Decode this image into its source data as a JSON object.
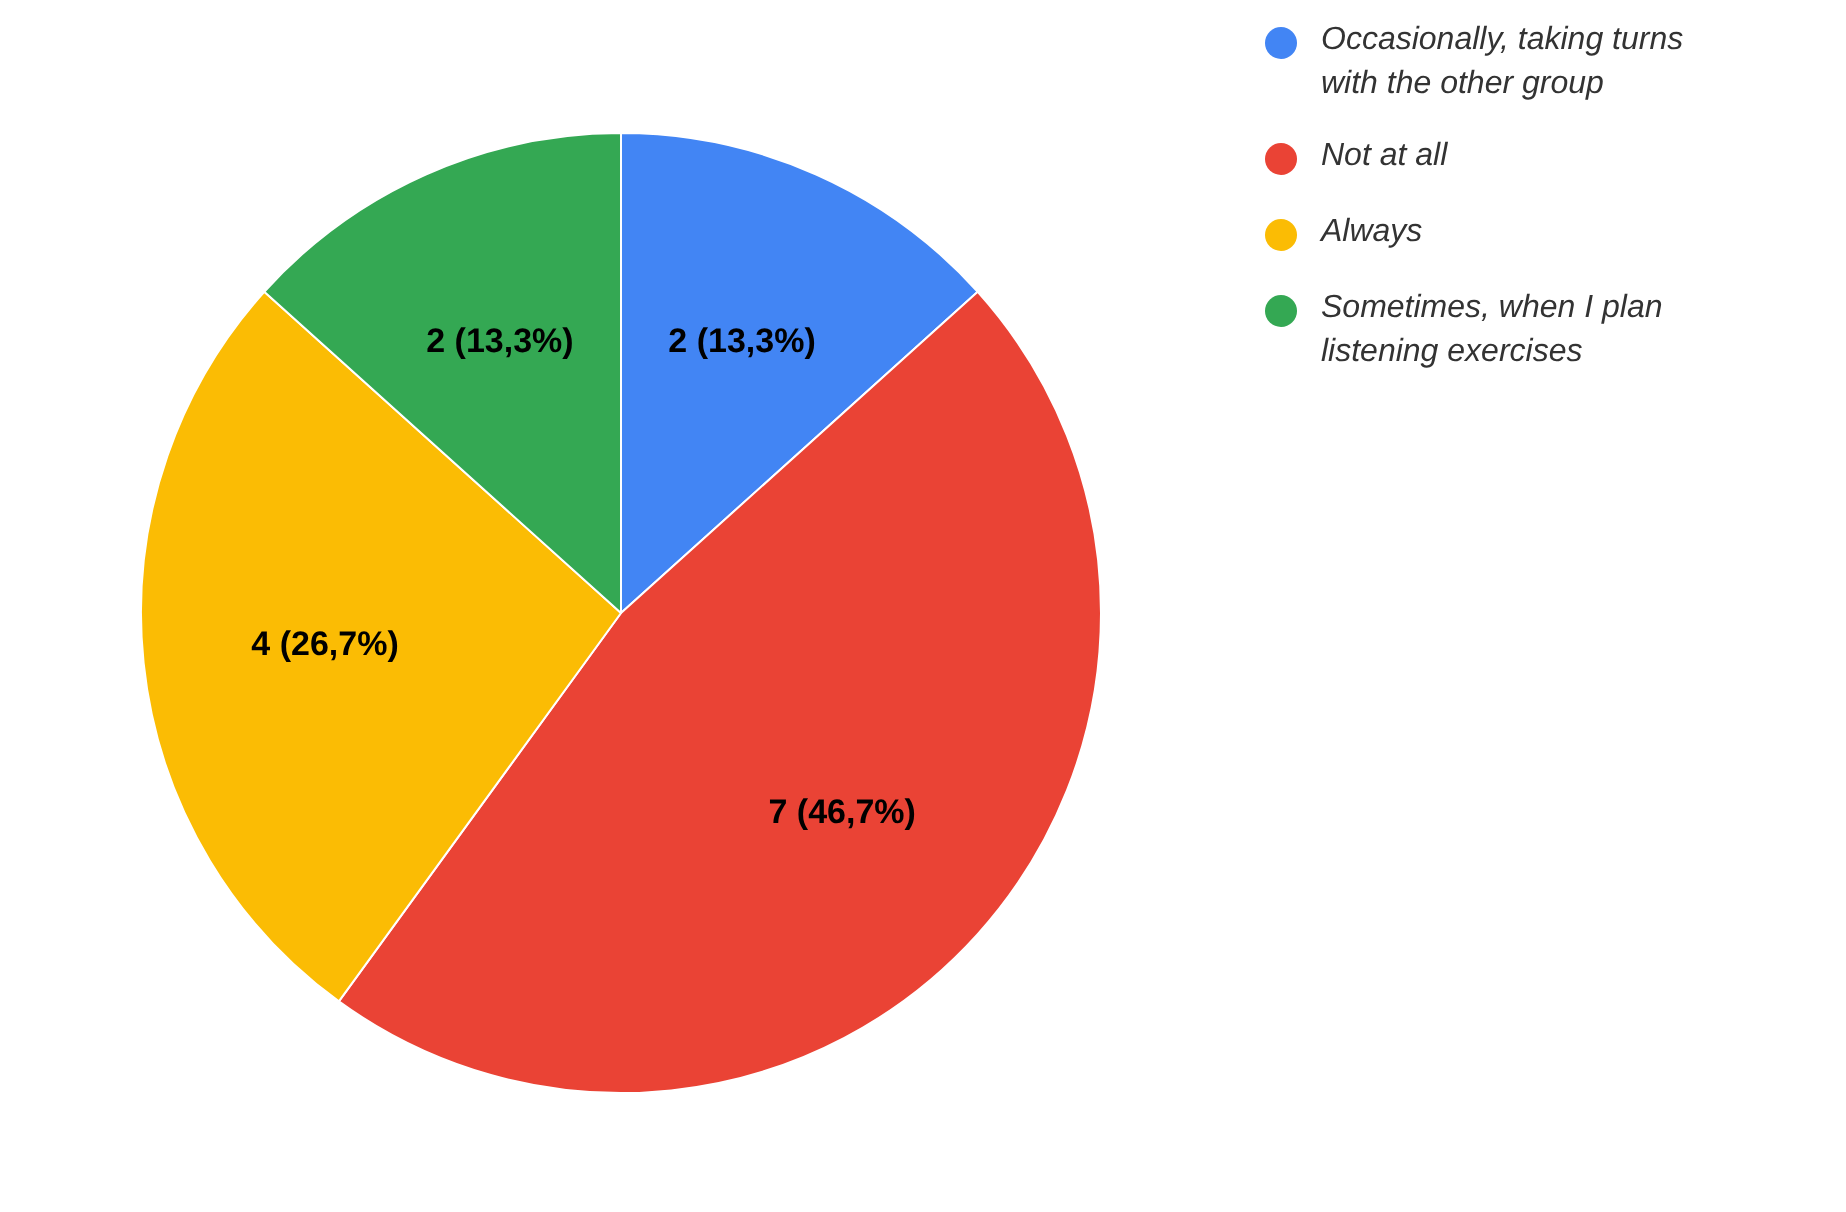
{
  "chart_data": {
    "type": "pie",
    "categories": [
      "Occasionally, taking turns with the other group",
      "Not at all",
      "Always",
      "Sometimes, when I plan listening exercises"
    ],
    "values": [
      2,
      7,
      4,
      2
    ],
    "colors": [
      "#4285f4",
      "#ea4335",
      "#fbbc04",
      "#34a853"
    ],
    "value_labels": [
      "2 (13,3%)",
      "7 (46,7%)",
      "4 (26,7%)",
      "2 (13,3%)"
    ],
    "legend": "top right"
  }
}
